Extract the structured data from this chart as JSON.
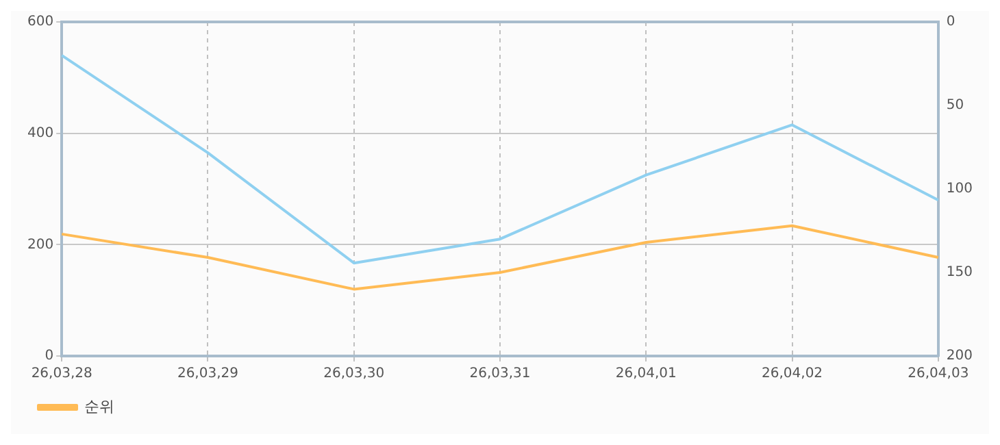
{
  "chart_data": {
    "type": "line",
    "categories": [
      "26,03,28",
      "26,03,29",
      "26,03,30",
      "26,03,31",
      "26,04,01",
      "26,04,02",
      "26,04,03"
    ],
    "series": [
      {
        "color": "#8fd0f0",
        "values": [
          540,
          365,
          167,
          210,
          325,
          415,
          280
        ]
      },
      {
        "name": "순위",
        "color": "#ffbb55",
        "axis": "y2",
        "values": [
          127,
          141,
          160,
          150,
          132,
          122,
          141
        ]
      }
    ],
    "ylim": [
      0,
      600
    ],
    "yticks": [
      0,
      200,
      400,
      600
    ],
    "y2lim": [
      200,
      0
    ],
    "y2ticks": [
      0,
      50,
      100,
      150,
      200
    ],
    "grid": true,
    "legend": "bottom left",
    "marker": "none",
    "line_style": "solid"
  }
}
